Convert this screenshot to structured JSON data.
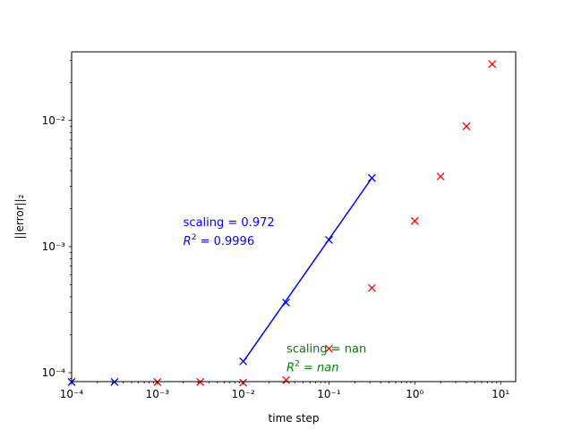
{
  "chart_data": {
    "type": "scatter",
    "xscale": "log",
    "yscale": "log",
    "xlabel": "time step",
    "ylabel": "||error||₂",
    "xlim": [
      0.0001,
      15
    ],
    "ylim": [
      8.5e-05,
      0.035
    ],
    "x_ticks": [
      {
        "value": 0.0001,
        "label": "10⁻⁴"
      },
      {
        "value": 0.001,
        "label": "10⁻³"
      },
      {
        "value": 0.01,
        "label": "10⁻²"
      },
      {
        "value": 0.1,
        "label": "10⁻¹"
      },
      {
        "value": 1,
        "label": "10⁰"
      },
      {
        "value": 10,
        "label": "10¹"
      }
    ],
    "y_ticks": [
      {
        "value": 0.0001,
        "label": "10⁻⁴"
      },
      {
        "value": 0.001,
        "label": "10⁻³"
      },
      {
        "value": 0.01,
        "label": "10⁻²"
      }
    ],
    "series": [
      {
        "color": "#ff0000",
        "marker": "x",
        "points": [
          {
            "x": 0.001,
            "y": 8.45e-05
          },
          {
            "x": 0.00316,
            "y": 8.45e-05
          },
          {
            "x": 0.01,
            "y": 8.35e-05
          },
          {
            "x": 0.0316,
            "y": 8.75e-05
          },
          {
            "x": 0.1,
            "y": 0.000155
          },
          {
            "x": 0.316,
            "y": 0.00047
          },
          {
            "x": 1,
            "y": 0.0016
          },
          {
            "x": 2,
            "y": 0.0036
          },
          {
            "x": 4,
            "y": 0.009
          },
          {
            "x": 8,
            "y": 0.028
          }
        ]
      },
      {
        "color": "#0000ff",
        "marker": "x",
        "points": [
          {
            "x": 0.0001,
            "y": 8.45e-05
          },
          {
            "x": 0.000316,
            "y": 8.45e-05
          },
          {
            "x": 0.01,
            "y": 0.000123
          },
          {
            "x": 0.0316,
            "y": 0.00036
          },
          {
            "x": 0.1,
            "y": 0.00113
          },
          {
            "x": 0.316,
            "y": 0.0035
          }
        ]
      }
    ],
    "fit_lines": [
      {
        "color": "#0000ff",
        "x": [
          0.01,
          0.316
        ],
        "y": [
          0.000122,
          0.0035
        ]
      }
    ],
    "annotations": [
      {
        "color": "#0000ff",
        "x": 0.002,
        "y": 0.00145,
        "line1": "scaling = 0.972",
        "r2_value": "0.9996"
      },
      {
        "color": "#008000",
        "x": 0.032,
        "y": 0.000145,
        "line1": "scaling = nan",
        "r2_value": "nan"
      }
    ]
  }
}
